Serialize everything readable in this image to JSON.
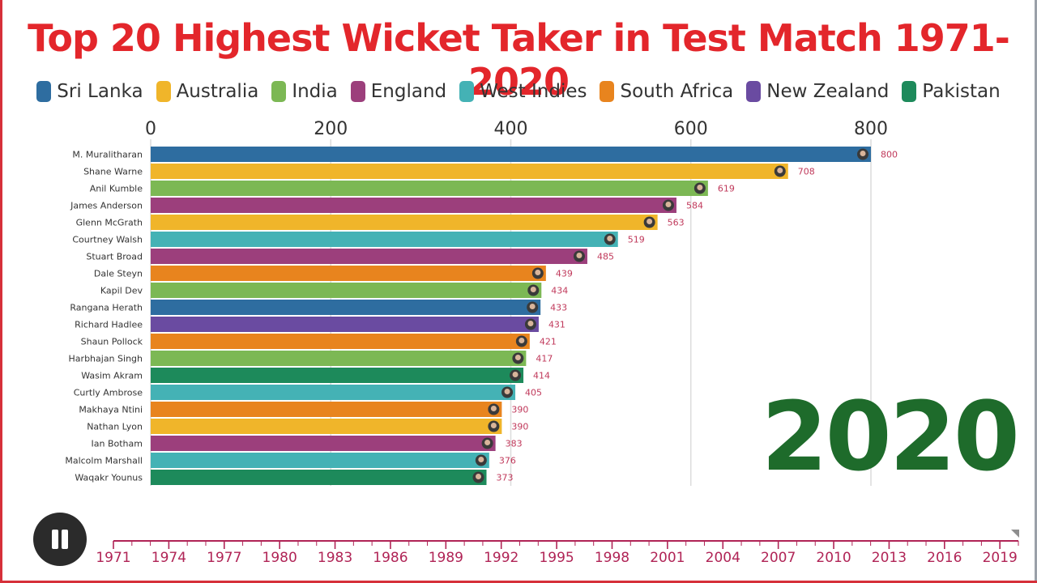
{
  "title": "Top 20 Highest Wicket Taker in Test Match 1971-2020",
  "current_year": "2020",
  "colors": {
    "Sri Lanka": "#2e6da0",
    "Australia": "#f0b52a",
    "India": "#7cb854",
    "England": "#9c3f7c",
    "West Indies": "#44b2b5",
    "South Africa": "#e8841e",
    "New Zealand": "#6a4ba1",
    "Pakistan": "#1d8a5b",
    "title": "#e3262b",
    "year": "#1e6b2b",
    "value_label": "#c0395b",
    "timeline": "#b02456"
  },
  "legend": [
    "Sri Lanka",
    "Australia",
    "India",
    "England",
    "West Indies",
    "South Africa",
    "New Zealand",
    "Pakistan"
  ],
  "chart_data": {
    "type": "bar",
    "orientation": "horizontal",
    "title": "Top 20 Highest Wicket Taker in Test Match 1971-2020",
    "xlim": [
      0,
      800
    ],
    "x_ticks": [
      0,
      200,
      400,
      600,
      800
    ],
    "grid": true,
    "legend_position": "top",
    "categories": [
      "M. Muralitharan",
      "Shane Warne",
      "Anil Kumble",
      "James Anderson",
      "Glenn McGrath",
      "Courtney Walsh",
      "Stuart Broad",
      "Dale Steyn",
      "Kapil Dev",
      "Rangana Herath",
      "Richard Hadlee",
      "Shaun Pollock",
      "Harbhajan Singh",
      "Wasim Akram",
      "Curtly Ambrose",
      "Makhaya Ntini",
      "Nathan Lyon",
      "Ian Botham",
      "Malcolm Marshall",
      "Waqakr Younus"
    ],
    "values": [
      800,
      708,
      619,
      584,
      563,
      519,
      485,
      439,
      434,
      433,
      431,
      421,
      417,
      414,
      405,
      390,
      390,
      383,
      376,
      373
    ],
    "countries": [
      "Sri Lanka",
      "Australia",
      "India",
      "England",
      "Australia",
      "West Indies",
      "England",
      "South Africa",
      "India",
      "Sri Lanka",
      "New Zealand",
      "South Africa",
      "India",
      "Pakistan",
      "West Indies",
      "South Africa",
      "Australia",
      "England",
      "West Indies",
      "Pakistan"
    ]
  },
  "timeline": {
    "labels": [
      "1971",
      "1974",
      "1977",
      "1980",
      "1983",
      "1986",
      "1989",
      "1992",
      "1995",
      "1998",
      "2001",
      "2004",
      "2007",
      "2010",
      "2013",
      "2016",
      "2019"
    ],
    "start_year": 1971,
    "end_year": 2020,
    "current": 2020
  },
  "controls": {
    "pause_icon": "pause-icon"
  }
}
